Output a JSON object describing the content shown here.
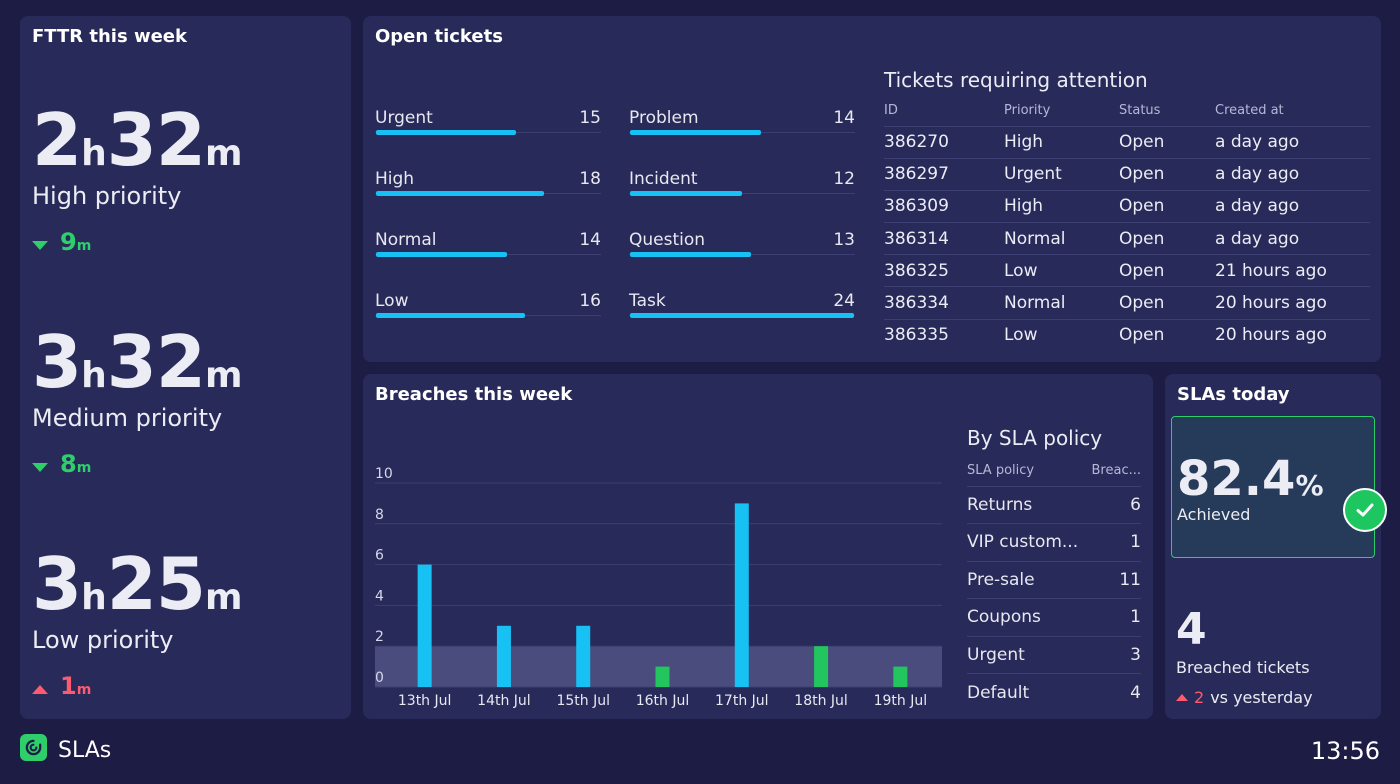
{
  "fttr": {
    "title": "FTTR this week",
    "items": [
      {
        "hours": "2",
        "h_unit": "h",
        "minutes": "32",
        "m_unit": "m",
        "label": "High priority",
        "delta": "9",
        "delta_unit": "m",
        "trend": "down"
      },
      {
        "hours": "3",
        "h_unit": "h",
        "minutes": "32",
        "m_unit": "m",
        "label": "Medium priority",
        "delta": "8",
        "delta_unit": "m",
        "trend": "down"
      },
      {
        "hours": "3",
        "h_unit": "h",
        "minutes": "25",
        "m_unit": "m",
        "label": "Low priority",
        "delta": "1",
        "delta_unit": "m",
        "trend": "up"
      }
    ]
  },
  "open_tickets": {
    "title": "Open tickets",
    "max": 24,
    "by_priority": [
      {
        "label": "Urgent",
        "value": 15
      },
      {
        "label": "High",
        "value": 18
      },
      {
        "label": "Normal",
        "value": 14
      },
      {
        "label": "Low",
        "value": 16
      }
    ],
    "by_type": [
      {
        "label": "Problem",
        "value": 14
      },
      {
        "label": "Incident",
        "value": 12
      },
      {
        "label": "Question",
        "value": 13
      },
      {
        "label": "Task",
        "value": 24
      }
    ],
    "attention": {
      "title": "Tickets requiring attention",
      "headers": [
        "ID",
        "Priority",
        "Status",
        "Created at"
      ],
      "rows": [
        [
          "386270",
          "High",
          "Open",
          "a day ago"
        ],
        [
          "386297",
          "Urgent",
          "Open",
          "a day ago"
        ],
        [
          "386309",
          "High",
          "Open",
          "a day ago"
        ],
        [
          "386314",
          "Normal",
          "Open",
          "a day ago"
        ],
        [
          "386325",
          "Low",
          "Open",
          "21 hours ago"
        ],
        [
          "386334",
          "Normal",
          "Open",
          "20 hours ago"
        ],
        [
          "386335",
          "Low",
          "Open",
          "20 hours ago"
        ]
      ]
    }
  },
  "breaches": {
    "title": "Breaches this week",
    "policy_title": "By SLA policy",
    "policy_headers": [
      "SLA policy",
      "Breac..."
    ],
    "policies": [
      [
        "Returns",
        "6"
      ],
      [
        "VIP custom...",
        "1"
      ],
      [
        "Pre-sale",
        "11"
      ],
      [
        "Coupons",
        "1"
      ],
      [
        "Urgent",
        "3"
      ],
      [
        "Default",
        "4"
      ]
    ]
  },
  "chart_data": {
    "type": "bar",
    "categories": [
      "13th Jul",
      "14th Jul",
      "15th Jul",
      "16th Jul",
      "17th Jul",
      "18th Jul",
      "19th Jul"
    ],
    "values": [
      6,
      3,
      3,
      1,
      9,
      2,
      1
    ],
    "bar_colors": [
      "#17c1f4",
      "#17c1f4",
      "#17c1f4",
      "#22c55e",
      "#17c1f4",
      "#22c55e",
      "#22c55e"
    ],
    "ylim": [
      0,
      10
    ],
    "yticks": [
      "0",
      "2",
      "4",
      "6",
      "8",
      "10"
    ],
    "threshold_band": [
      0,
      2
    ],
    "grid": true,
    "title": "",
    "xlabel": "",
    "ylabel": ""
  },
  "slas_today": {
    "title": "SLAs today",
    "achieved_value": "82.4",
    "achieved_unit": "%",
    "achieved_label": "Achieved",
    "breached_count": "4",
    "breached_label": "Breached tickets",
    "delta_value": "2",
    "delta_text": "vs yesterday"
  },
  "footer": {
    "app_name": "SLAs",
    "clock": "13:56"
  },
  "colors": {
    "background": "#1d1c44",
    "panel": "#282a59",
    "bar_blue": "#17c1f4",
    "good": "#2ecf6a",
    "bad": "#ff5a6e"
  }
}
